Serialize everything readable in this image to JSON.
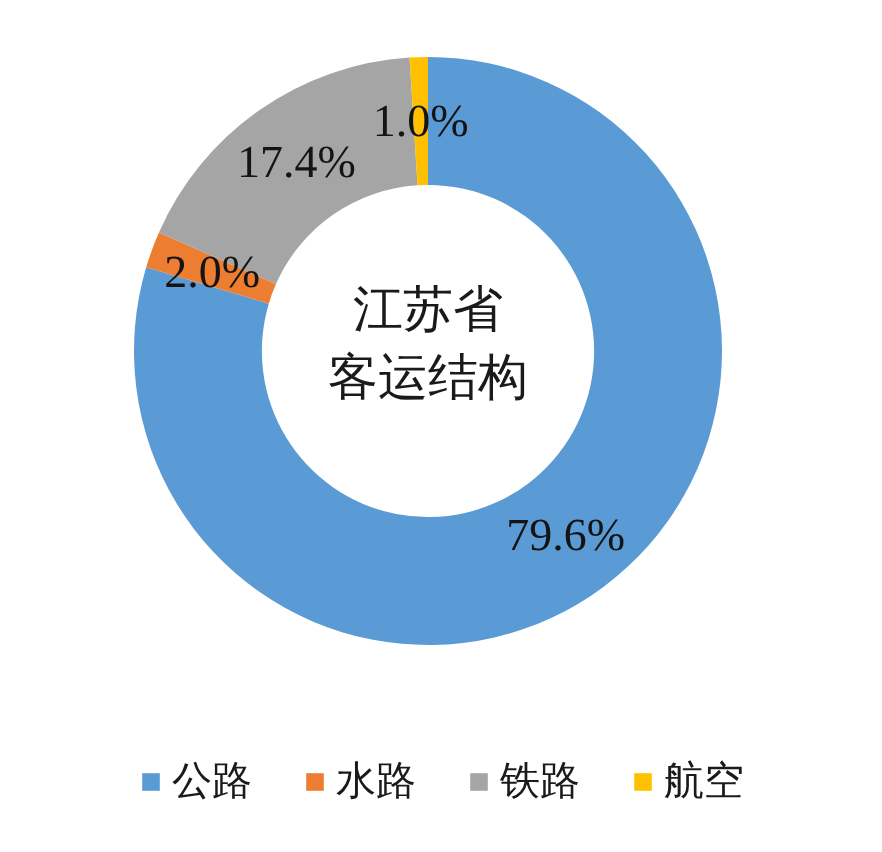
{
  "chart_data": {
    "type": "donut",
    "title": "江苏省客运结构",
    "categories": [
      "公路",
      "水路",
      "铁路",
      "航空"
    ],
    "values": [
      79.6,
      2.0,
      17.4,
      1.0
    ],
    "colors": [
      "#5b9bd5",
      "#ed7d31",
      "#a5a5a5",
      "#ffc000"
    ],
    "value_labels": [
      "79.6%",
      "2.0%",
      "17.4%",
      "1.0%"
    ],
    "legend": "bottom"
  }
}
